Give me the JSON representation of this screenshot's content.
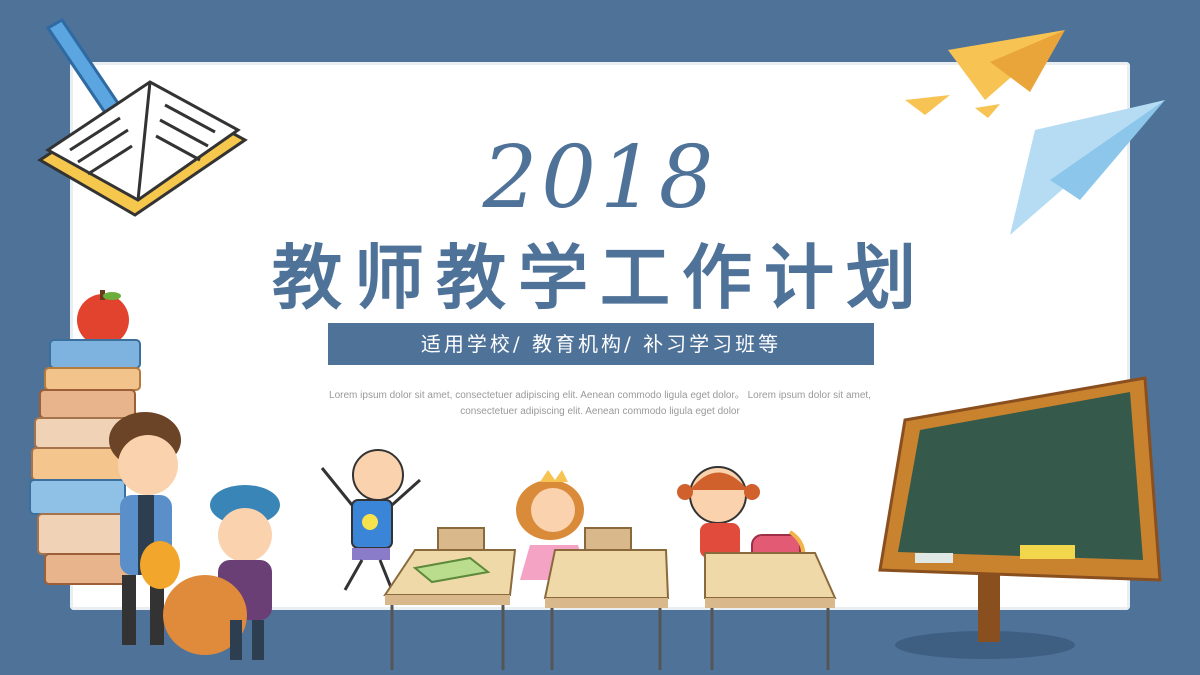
{
  "slide": {
    "year": "2018",
    "title": "教师教学工作计划",
    "subtitle": "适用学校/ 教育机构/ 补习学习班等",
    "body_line_1": "Lorem ipsum dolor sit amet, consectetuer adipiscing elit. Aenean commodo ligula eget dolor。 Lorem ipsum dolor sit amet,",
    "body_line_2": "consectetuer adipiscing elit. Aenean commodo ligula eget dolor"
  },
  "colors": {
    "background": "#4f7299",
    "accent": "#4f7299",
    "text_muted": "#9a9a9a"
  },
  "illustrations": [
    "open-book-icon",
    "crayon-icon",
    "paper-plane-icon",
    "apple-icon",
    "book-stack",
    "teacher-figure",
    "student-with-cap",
    "waving-child",
    "girl-with-crown",
    "girl-with-pigtails",
    "school-desk",
    "backpack-icon",
    "chalkboard"
  ]
}
